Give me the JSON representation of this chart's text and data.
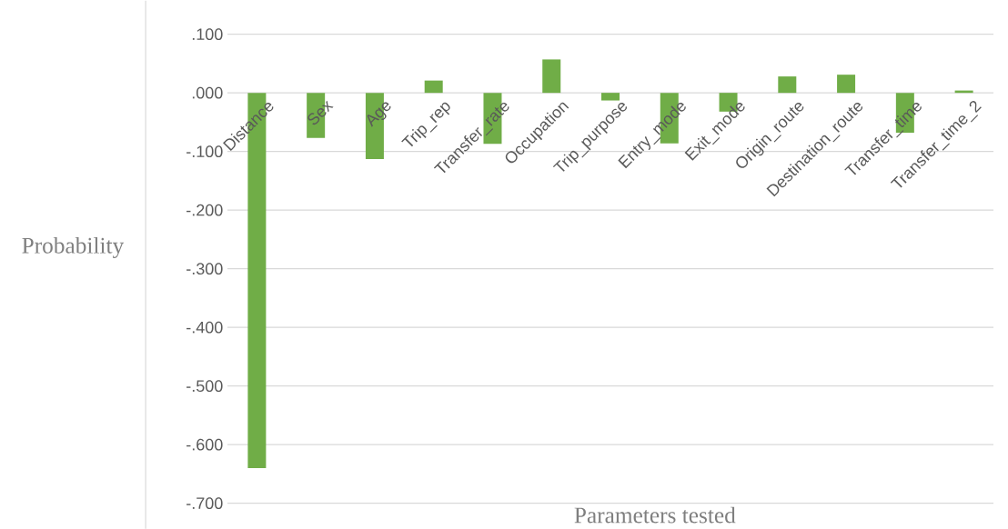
{
  "chart_data": {
    "type": "bar",
    "xlabel": "Parameters tested",
    "ylabel": "Probability",
    "categories": [
      "Distance",
      "Sex",
      "Age",
      "Trip_rep",
      "Transfer_rate",
      "Occupation",
      "Trip_purpose",
      "Entry_mode",
      "Exit_mode",
      "Origin_route",
      "Destination_route",
      "Transfer_time",
      "Transfer_time_2"
    ],
    "values": [
      -0.64,
      -0.077,
      -0.113,
      0.021,
      -0.087,
      0.057,
      -0.013,
      -0.086,
      -0.032,
      0.028,
      0.031,
      -0.068,
      0.004
    ],
    "color": "#70ad47",
    "ylim": [
      -0.7,
      0.1
    ],
    "yticks": [
      {
        "value": -0.7,
        "label": "-.700"
      },
      {
        "value": -0.6,
        "label": "-.600"
      },
      {
        "value": -0.5,
        "label": "-.500"
      },
      {
        "value": -0.4,
        "label": "-.400"
      },
      {
        "value": -0.3,
        "label": "-.300"
      },
      {
        "value": -0.2,
        "label": "-.200"
      },
      {
        "value": -0.1,
        "label": "-.100"
      },
      {
        "value": 0,
        "label": ".000"
      },
      {
        "value": 0.1,
        "label": ".100"
      }
    ],
    "grid": "y"
  }
}
